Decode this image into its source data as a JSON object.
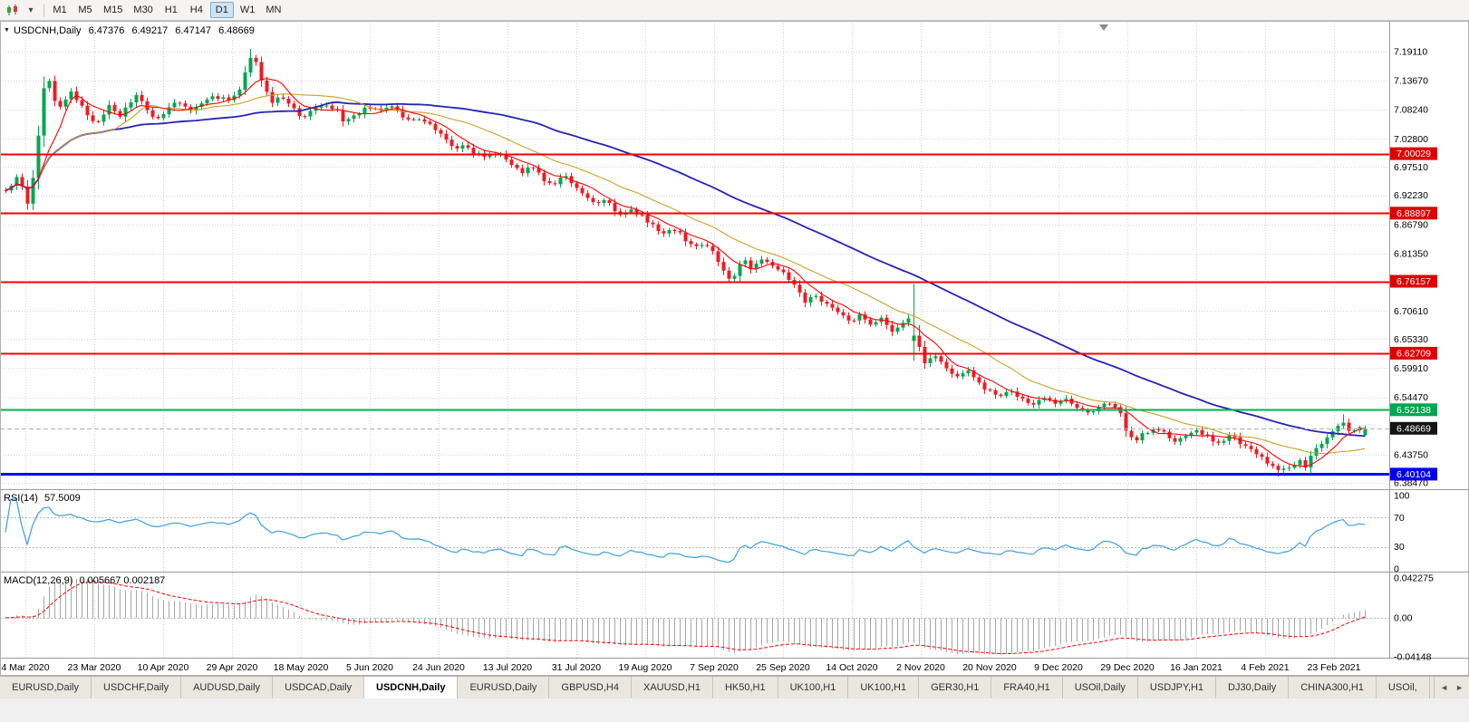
{
  "toolbar": {
    "timeframes": [
      {
        "label": "M1",
        "active": false
      },
      {
        "label": "M5",
        "active": false
      },
      {
        "label": "M15",
        "active": false
      },
      {
        "label": "M30",
        "active": false
      },
      {
        "label": "H1",
        "active": false
      },
      {
        "label": "H4",
        "active": false
      },
      {
        "label": "D1",
        "active": true
      },
      {
        "label": "W1",
        "active": false
      },
      {
        "label": "MN",
        "active": false
      }
    ]
  },
  "chart": {
    "collapse_glyph": "▼",
    "title": {
      "symbol": "USDCNH,Daily",
      "open": "6.47376",
      "high": "6.49217",
      "low": "6.47147",
      "close": "6.48669"
    }
  },
  "chart_data": {
    "type": "candlestick",
    "symbol": "USDCNH",
    "timeframe": "Daily",
    "y_range": {
      "min": 6.3847,
      "max": 7.1911
    },
    "price_axis_labels": [
      "7.19110",
      "7.13670",
      "7.08240",
      "7.02800",
      "6.97510",
      "6.92230",
      "6.86790",
      "6.81350",
      "6.70610",
      "6.65330",
      "6.59910",
      "6.54470",
      "6.43750",
      "6.38470"
    ],
    "x_labels": [
      "4 Mar 2020",
      "23 Mar 2020",
      "10 Apr 2020",
      "29 Apr 2020",
      "18 May 2020",
      "5 Jun 2020",
      "24 Jun 2020",
      "13 Jul 2020",
      "31 Jul 2020",
      "19 Aug 2020",
      "7 Sep 2020",
      "25 Sep 2020",
      "14 Oct 2020",
      "2 Nov 2020",
      "20 Nov 2020",
      "9 Dec 2020",
      "29 Dec 2020",
      "16 Jan 2021",
      "4 Feb 2021",
      "23 Feb 2021"
    ],
    "x_tick_start": 28,
    "x_tick_step": 76,
    "candles": {
      "count": 251,
      "x_start": 6,
      "x_step": 6
    },
    "price_anchors": [
      [
        0,
        6.95
      ],
      [
        8,
        6.926
      ],
      [
        16,
        6.958
      ],
      [
        24,
        6.938
      ],
      [
        30,
        6.905
      ],
      [
        38,
        6.975
      ],
      [
        44,
        7.06
      ],
      [
        50,
        7.158
      ],
      [
        56,
        7.12
      ],
      [
        64,
        7.078
      ],
      [
        72,
        7.105
      ],
      [
        80,
        7.118
      ],
      [
        90,
        7.092
      ],
      [
        100,
        7.065
      ],
      [
        110,
        7.058
      ],
      [
        120,
        7.088
      ],
      [
        130,
        7.068
      ],
      [
        140,
        7.09
      ],
      [
        150,
        7.108
      ],
      [
        160,
        7.088
      ],
      [
        172,
        7.062
      ],
      [
        184,
        7.085
      ],
      [
        196,
        7.1
      ],
      [
        208,
        7.078
      ],
      [
        220,
        7.092
      ],
      [
        232,
        7.112
      ],
      [
        244,
        7.095
      ],
      [
        256,
        7.108
      ],
      [
        266,
        7.13
      ],
      [
        276,
        7.182
      ],
      [
        282,
        7.168
      ],
      [
        290,
        7.125
      ],
      [
        300,
        7.098
      ],
      [
        310,
        7.108
      ],
      [
        322,
        7.088
      ],
      [
        334,
        7.068
      ],
      [
        346,
        7.082
      ],
      [
        358,
        7.094
      ],
      [
        370,
        7.076
      ],
      [
        382,
        7.06
      ],
      [
        394,
        7.074
      ],
      [
        406,
        7.088
      ],
      [
        418,
        7.08
      ],
      [
        430,
        7.094
      ],
      [
        442,
        7.072
      ],
      [
        454,
        7.058
      ],
      [
        466,
        7.066
      ],
      [
        478,
        7.052
      ],
      [
        490,
        7.028
      ],
      [
        502,
        7.008
      ],
      [
        514,
        7.018
      ],
      [
        526,
        7.002
      ],
      [
        538,
        6.992
      ],
      [
        550,
        7.002
      ],
      [
        562,
        6.985
      ],
      [
        574,
        6.965
      ],
      [
        586,
        6.976
      ],
      [
        598,
        6.954
      ],
      [
        610,
        6.942
      ],
      [
        622,
        6.96
      ],
      [
        634,
        6.938
      ],
      [
        646,
        6.918
      ],
      [
        658,
        6.902
      ],
      [
        670,
        6.916
      ],
      [
        682,
        6.884
      ],
      [
        694,
        6.896
      ],
      [
        706,
        6.886
      ],
      [
        718,
        6.87
      ],
      [
        730,
        6.848
      ],
      [
        742,
        6.862
      ],
      [
        754,
        6.838
      ],
      [
        766,
        6.822
      ],
      [
        778,
        6.836
      ],
      [
        790,
        6.806
      ],
      [
        800,
        6.778
      ],
      [
        808,
        6.762
      ],
      [
        818,
        6.806
      ],
      [
        828,
        6.788
      ],
      [
        840,
        6.806
      ],
      [
        852,
        6.79
      ],
      [
        864,
        6.776
      ],
      [
        876,
        6.752
      ],
      [
        888,
        6.722
      ],
      [
        900,
        6.736
      ],
      [
        912,
        6.716
      ],
      [
        924,
        6.704
      ],
      [
        936,
        6.688
      ],
      [
        948,
        6.7
      ],
      [
        960,
        6.678
      ],
      [
        972,
        6.692
      ],
      [
        984,
        6.67
      ],
      [
        996,
        6.686
      ],
      [
        1004,
        6.696
      ],
      [
        1012,
        6.648
      ],
      [
        1020,
        6.61
      ],
      [
        1030,
        6.624
      ],
      [
        1042,
        6.6
      ],
      [
        1054,
        6.584
      ],
      [
        1066,
        6.597
      ],
      [
        1078,
        6.572
      ],
      [
        1090,
        6.558
      ],
      [
        1102,
        6.548
      ],
      [
        1114,
        6.556
      ],
      [
        1126,
        6.54
      ],
      [
        1138,
        6.532
      ],
      [
        1150,
        6.547
      ],
      [
        1162,
        6.532
      ],
      [
        1174,
        6.541
      ],
      [
        1186,
        6.524
      ],
      [
        1198,
        6.512
      ],
      [
        1210,
        6.525
      ],
      [
        1222,
        6.536
      ],
      [
        1232,
        6.52
      ],
      [
        1242,
        6.486
      ],
      [
        1250,
        6.46
      ],
      [
        1260,
        6.474
      ],
      [
        1272,
        6.488
      ],
      [
        1284,
        6.478
      ],
      [
        1296,
        6.464
      ],
      [
        1308,
        6.476
      ],
      [
        1320,
        6.486
      ],
      [
        1332,
        6.47
      ],
      [
        1344,
        6.458
      ],
      [
        1356,
        6.476
      ],
      [
        1368,
        6.46
      ],
      [
        1380,
        6.446
      ],
      [
        1392,
        6.432
      ],
      [
        1402,
        6.418
      ],
      [
        1412,
        6.406
      ],
      [
        1422,
        6.414
      ],
      [
        1432,
        6.428
      ],
      [
        1440,
        6.42
      ],
      [
        1448,
        6.44
      ],
      [
        1456,
        6.456
      ],
      [
        1464,
        6.47
      ],
      [
        1472,
        6.486
      ],
      [
        1480,
        6.497
      ],
      [
        1488,
        6.478
      ],
      [
        1498,
        6.484
      ],
      [
        1506,
        6.487
      ]
    ],
    "special_candles": [
      {
        "x": 276,
        "high": 7.196
      },
      {
        "x": 1010,
        "open": 6.65,
        "close": 6.66,
        "high": 6.757,
        "low": 6.613
      },
      {
        "x": 1412,
        "low": 6.397
      },
      {
        "x": 1480,
        "high": 6.513
      },
      {
        "x": 1506,
        "open": 6.47376,
        "high": 6.49217,
        "low": 6.47147,
        "close": 6.48669
      }
    ],
    "hlines": [
      {
        "label": "7.00029",
        "value": 7.00029,
        "color": "#ff0000",
        "badge": "#dd0000",
        "width": 2
      },
      {
        "label": "6.88897",
        "value": 6.88897,
        "color": "#ff0000",
        "badge": "#dd0000",
        "width": 2
      },
      {
        "label": "6.76157",
        "value": 6.76157,
        "color": "#ff0000",
        "badge": "#dd0000",
        "width": 2
      },
      {
        "label": "6.62709",
        "value": 6.62709,
        "color": "#ff0000",
        "badge": "#dd0000",
        "width": 2
      },
      {
        "label": "6.52138",
        "value": 6.52138,
        "color": "#00b050",
        "badge": "#00a651",
        "width": 2
      },
      {
        "label": "6.40104",
        "value": 6.40104,
        "color": "#0000ff",
        "badge": "#0000ee",
        "width": 3
      }
    ],
    "current_price": {
      "label": "6.48669",
      "value": 6.48669
    },
    "moving_averages": [
      {
        "name": "slow-blue",
        "period": 55,
        "color": "#2424b4",
        "width": 1.8
      },
      {
        "name": "mid-gold",
        "period": 21,
        "color": "#c9a227",
        "width": 1.1
      },
      {
        "name": "fast-red",
        "period": 7,
        "color": "#ff0000",
        "width": 1.1
      }
    ],
    "indicators": {
      "rsi": {
        "label": "RSI(14)",
        "value": "57.5009",
        "period": 14,
        "levels": [
          100,
          70,
          30,
          0
        ],
        "level_labels": [
          "100",
          "70",
          "30",
          "0"
        ],
        "dashed_levels": [
          70,
          30
        ]
      },
      "macd": {
        "label": "MACD(12,26,9)",
        "value": "0.005667 0.002187",
        "fast": 12,
        "slow": 26,
        "signal": 9,
        "axis_labels": [
          "0.042275",
          "0.00",
          "-0.04148"
        ],
        "y_range": {
          "min": -0.04148,
          "max": 0.042275
        }
      }
    }
  },
  "tabs": {
    "scroll_left": "◄",
    "scroll_right": "►",
    "items": [
      {
        "label": "EURUSD,Daily",
        "active": false
      },
      {
        "label": "USDCHF,Daily",
        "active": false
      },
      {
        "label": "AUDUSD,Daily",
        "active": false
      },
      {
        "label": "USDCAD,Daily",
        "active": false
      },
      {
        "label": "USDCNH,Daily",
        "active": true
      },
      {
        "label": "EURUSD,Daily",
        "active": false
      },
      {
        "label": "GBPUSD,H4",
        "active": false
      },
      {
        "label": "XAUUSD,H1",
        "active": false
      },
      {
        "label": "HK50,H1",
        "active": false
      },
      {
        "label": "UK100,H1",
        "active": false
      },
      {
        "label": "UK100,H1",
        "active": false
      },
      {
        "label": "GER30,H1",
        "active": false
      },
      {
        "label": "FRA40,H1",
        "active": false
      },
      {
        "label": "USOil,Daily",
        "active": false
      },
      {
        "label": "USDJPY,H1",
        "active": false
      },
      {
        "label": "DJ30,Daily",
        "active": false
      },
      {
        "label": "CHINA300,H1",
        "active": false
      },
      {
        "label": "USOil,",
        "active": false
      }
    ]
  },
  "colors": {
    "background": "#ffffff",
    "grid": "#d4d4d4",
    "candle_up": "#00a651",
    "candle_down": "#ed1c24",
    "rsi_line": "#3f9fdf",
    "macd_hist": "#a6a6a6",
    "macd_signal": "#ff0000",
    "current_price_line": "#b0b0b0",
    "current_price_badge": "#141414",
    "separator": "#9a9a9a"
  }
}
